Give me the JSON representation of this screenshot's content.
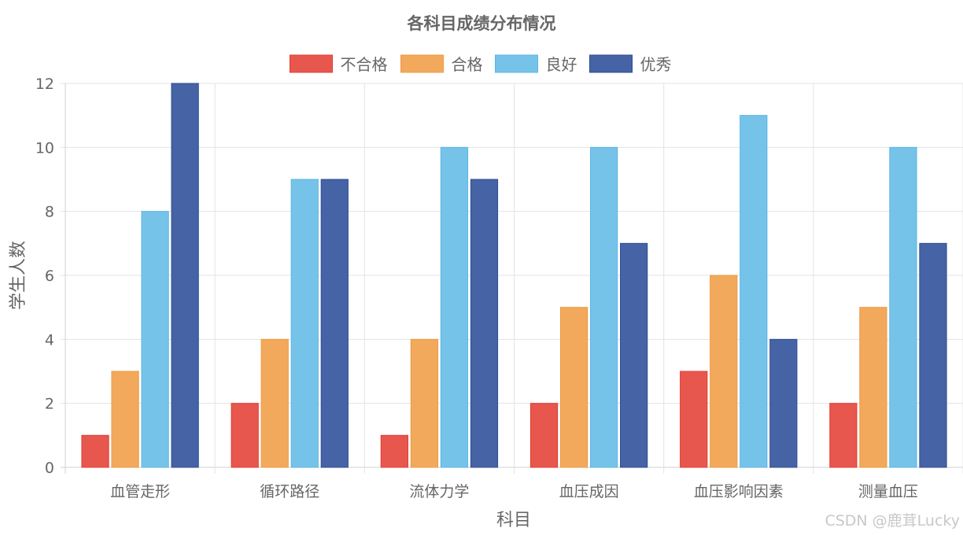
{
  "chart_data": {
    "type": "bar",
    "title": "各科目成绩分布情况",
    "xlabel": "科目",
    "ylabel": "学生人数",
    "ylim": [
      0,
      12
    ],
    "yticks": [
      0,
      2,
      4,
      6,
      8,
      10,
      12
    ],
    "grid": true,
    "legend_position": "top-center",
    "categories": [
      "血管走形",
      "循环路径",
      "流体力学",
      "血压成因",
      "血压影响因素",
      "测量血压"
    ],
    "series": [
      {
        "name": "不合格",
        "color": "#e8574e",
        "border": "#e03c32",
        "values": [
          1,
          2,
          1,
          2,
          3,
          2
        ]
      },
      {
        "name": "合格",
        "color": "#f2a95c",
        "border": "#ee9a40",
        "values": [
          3,
          4,
          4,
          5,
          6,
          5
        ]
      },
      {
        "name": "良好",
        "color": "#76c3ea",
        "border": "#5ab5e3",
        "values": [
          8,
          9,
          10,
          10,
          11,
          10
        ]
      },
      {
        "name": "优秀",
        "color": "#4563a5",
        "border": "#2f4d92",
        "values": [
          12,
          9,
          9,
          7,
          4,
          7
        ]
      }
    ]
  },
  "watermark": "CSDN @鹿茸Lucky"
}
